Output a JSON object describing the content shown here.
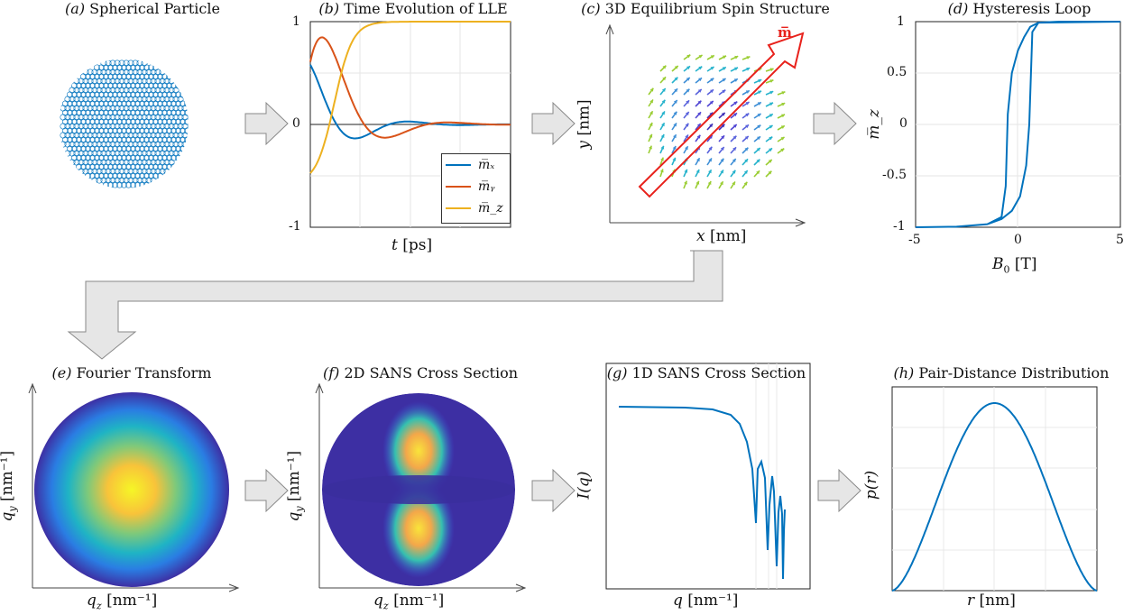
{
  "panels": {
    "a": {
      "tag": "(a)",
      "title": "Spherical Particle"
    },
    "b": {
      "tag": "(b)",
      "title": "Time Evolution of LLE",
      "xlabel_var": "t",
      "xlabel_unit": "[ps]",
      "yticks": [
        "1",
        "0",
        "-1"
      ],
      "legend": [
        "m̅ₓ",
        "m̅ᵧ",
        "m̅_z"
      ]
    },
    "c": {
      "tag": "(c)",
      "title": "3D Equilibrium Spin Structure",
      "xlabel_var": "x",
      "xlabel_unit": "[nm]",
      "ylabel_var": "y",
      "ylabel_unit": "[nm]",
      "marker_label": "m̅"
    },
    "d": {
      "tag": "(d)",
      "title": "Hysteresis Loop",
      "xlabel_var": "B",
      "xlabel_sub": "0",
      "xlabel_unit": "[T]",
      "ylabel": "m̅_z",
      "yticks": [
        "1",
        "0.5",
        "0",
        "-0.5",
        "-1"
      ],
      "xticks": [
        "-5",
        "0",
        "5"
      ]
    },
    "e": {
      "tag": "(e)",
      "title": "Fourier Transform",
      "xlabel_var": "q",
      "xlabel_sub": "z",
      "xlabel_unit": "[nm⁻¹]",
      "ylabel_var": "q",
      "ylabel_sub": "y",
      "ylabel_unit": "[nm⁻¹]"
    },
    "f": {
      "tag": "(f)",
      "title": "2D SANS Cross Section",
      "xlabel_var": "q",
      "xlabel_sub": "z",
      "xlabel_unit": "[nm⁻¹]",
      "ylabel_var": "q",
      "ylabel_sub": "y",
      "ylabel_unit": "[nm⁻¹]"
    },
    "g": {
      "tag": "(g)",
      "title": "1D SANS Cross Section",
      "xlabel_var": "q",
      "xlabel_unit": "[nm⁻¹]",
      "ylabel": "I(q)"
    },
    "h": {
      "tag": "(h)",
      "title": "Pair-Distance Distribution",
      "xlabel_var": "r",
      "xlabel_unit": "[nm]",
      "ylabel": "p(r)"
    }
  },
  "colors": {
    "mx": "#0072BD",
    "my": "#D95319",
    "mz": "#EDB120",
    "line": "#0072BD",
    "arrow": "#e4e4e4",
    "marker": "#e8221c"
  },
  "chart_data": [
    {
      "type": "line",
      "panel": "b",
      "series": [
        {
          "name": "m̅ₓ"
        },
        {
          "name": "m̅ᵧ"
        },
        {
          "name": "m̅_z"
        }
      ],
      "ylim": [
        -1,
        1
      ]
    },
    {
      "type": "line",
      "panel": "d",
      "xlim": [
        -5,
        5
      ],
      "ylim": [
        -1,
        1
      ]
    }
  ]
}
